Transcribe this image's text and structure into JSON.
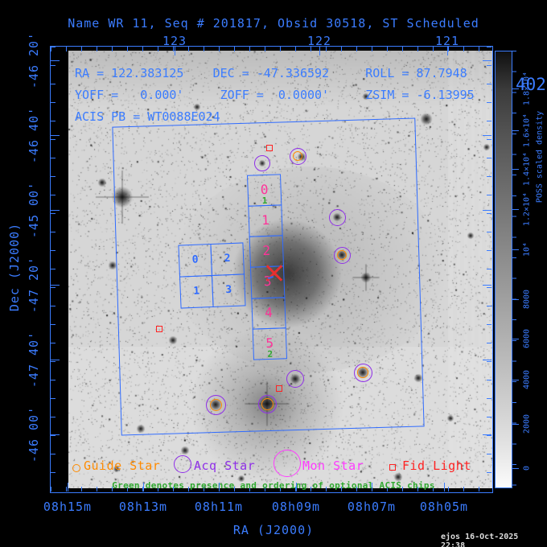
{
  "title": "Name WR 11, Seq # 201817, Obsid 30518, ST Scheduled",
  "info": {
    "line1": "RA = 122.383125    DEC = -47.336592     ROLL = 87.7948",
    "line2": "YOFF =   0.000'     ZOFF =  0.0000'     ZSIM = -6.13995",
    "line3": "ACIS PB = WT0088E024"
  },
  "axes": {
    "x_label": "RA (J2000)",
    "y_label": "Dec (J2000)",
    "top_ticks": [
      "123",
      "122",
      "121"
    ],
    "bottom_ticks": [
      "08h15m",
      "08h13m",
      "08h11m",
      "08h09m",
      "08h07m",
      "08h05m"
    ],
    "left_ticks": [
      "-46 20'",
      "-46 40'",
      "-45 00'",
      "-47 20'",
      "-47 40'",
      "-46 00'"
    ]
  },
  "colorbar": {
    "title": "POSS scaled density",
    "labels": [
      "1.8×10⁴",
      "1.6×10⁴",
      "1.4×10⁴",
      "1.2×10⁴",
      "10⁴",
      "8000",
      "6000",
      "4000",
      "2000",
      "0"
    ]
  },
  "chips": {
    "i_array": [
      "0",
      "2",
      "1",
      "3"
    ],
    "s_array": [
      "0",
      "1",
      "2",
      "3",
      "4",
      "5"
    ],
    "s_green": [
      "1",
      "",
      "",
      "",
      "",
      "2"
    ],
    "note": "Green denotes presence and ordering of optional ACIS chips"
  },
  "legend": {
    "guide": "Guide Star",
    "acq": "Acq Star",
    "mon": "Mon Star",
    "fid": "Fid Light"
  },
  "timestamp": "ejos 16-Oct-2025 22:38",
  "edge_fragment": "402",
  "colors": {
    "frame_blue": "#3b7cff",
    "chip_blue": "#2f6bff",
    "s_number_pink": "#ff3399",
    "optional_green": "#2fa82f",
    "guide_orange": "#ff8b00",
    "acq_purple": "#8f2fe8",
    "mon_magenta": "#ff3bff",
    "fid_red": "#ff2222",
    "timestamp_white": "#dddddd"
  }
}
